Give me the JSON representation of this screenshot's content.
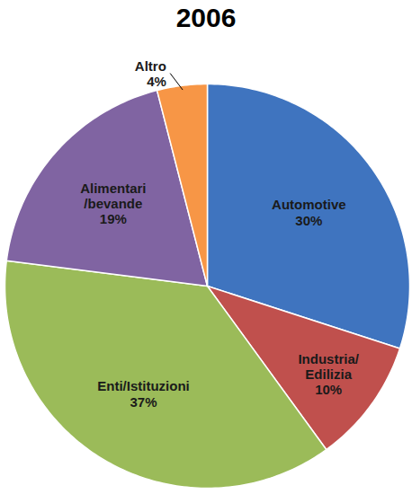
{
  "chart_data": {
    "type": "pie",
    "title": "2006",
    "categories": [
      "Automotive",
      "Industria/\nEdilizia",
      "Enti/Istituzioni",
      "Alimentari\n/bevande",
      "Altro"
    ],
    "values": [
      30,
      10,
      37,
      19,
      4
    ],
    "value_labels": [
      "30%",
      "10%",
      "37%",
      "19%",
      "4%"
    ],
    "colors": [
      "#3f74bf",
      "#c0504d",
      "#9bbb59",
      "#8064a2",
      "#f79646"
    ],
    "data_labels": true,
    "tick_labels": false
  }
}
